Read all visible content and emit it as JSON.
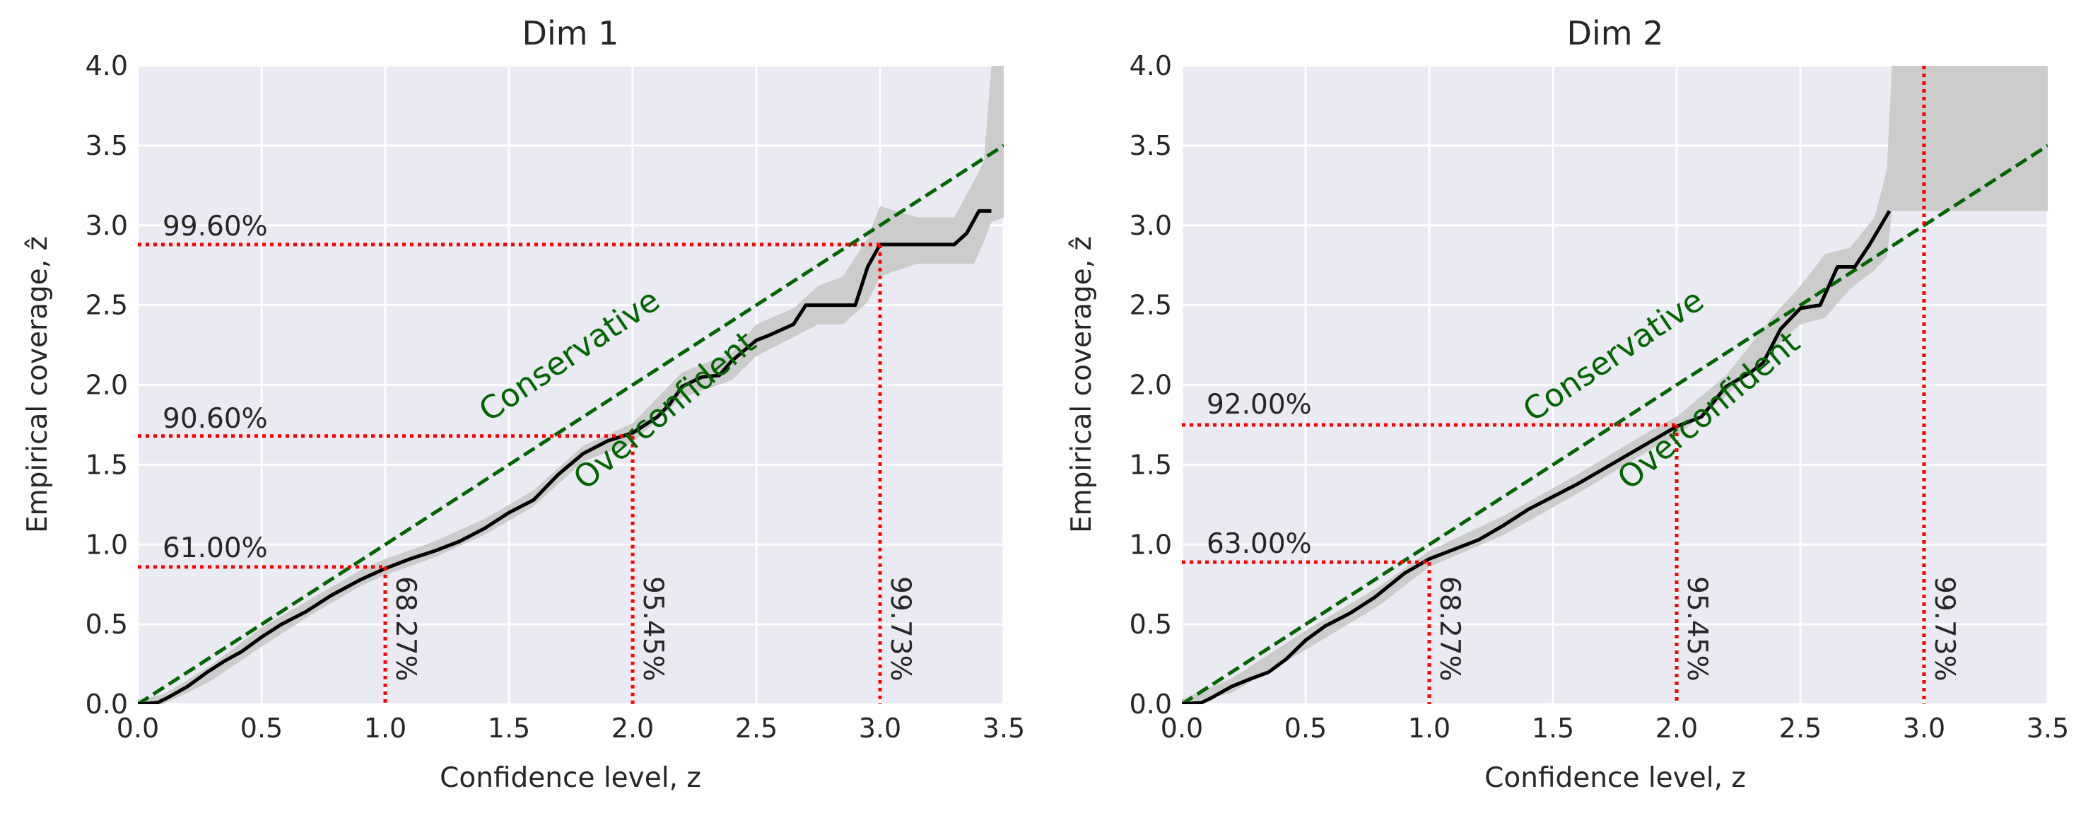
{
  "chart_data": [
    {
      "type": "line",
      "title": "Dim 1",
      "xlabel": "Confidence level, z",
      "ylabel": "Empirical coverage, ẑ",
      "xlim": [
        0.0,
        3.5
      ],
      "ylim": [
        0.0,
        4.0
      ],
      "xticks": [
        "0.0",
        "0.5",
        "1.0",
        "1.5",
        "2.0",
        "2.5",
        "3.0",
        "3.5"
      ],
      "yticks": [
        "0.0",
        "0.5",
        "1.0",
        "1.5",
        "2.0",
        "2.5",
        "3.0",
        "3.5",
        "4.0"
      ],
      "grid": true,
      "series": [
        {
          "name": "empirical coverage",
          "x": [
            0.0,
            0.08,
            0.12,
            0.2,
            0.28,
            0.35,
            0.42,
            0.5,
            0.58,
            0.68,
            0.78,
            0.9,
            1.0,
            1.1,
            1.2,
            1.3,
            1.4,
            1.5,
            1.6,
            1.7,
            1.8,
            1.9,
            2.0,
            2.1,
            2.15,
            2.2,
            2.28,
            2.35,
            2.4,
            2.5,
            2.55,
            2.65,
            2.7,
            2.8,
            2.9,
            2.95,
            3.0,
            3.1,
            3.2,
            3.3,
            3.35,
            3.4,
            3.45
          ],
          "y": [
            0.0,
            0.01,
            0.04,
            0.11,
            0.2,
            0.27,
            0.33,
            0.42,
            0.5,
            0.58,
            0.68,
            0.78,
            0.85,
            0.91,
            0.96,
            1.02,
            1.1,
            1.2,
            1.28,
            1.44,
            1.57,
            1.65,
            1.7,
            1.8,
            1.88,
            1.99,
            2.05,
            2.06,
            2.15,
            2.28,
            2.31,
            2.38,
            2.5,
            2.5,
            2.5,
            2.74,
            2.88,
            2.88,
            2.88,
            2.88,
            2.95,
            3.09,
            3.09
          ]
        },
        {
          "name": "uncertainty band",
          "x": [
            0.0,
            0.1,
            0.2,
            0.3,
            0.5,
            0.7,
            0.9,
            1.0,
            1.2,
            1.4,
            1.6,
            1.8,
            2.0,
            2.2,
            2.4,
            2.5,
            2.65,
            2.75,
            2.85,
            2.95,
            3.0,
            3.15,
            3.3,
            3.38,
            3.42,
            3.45,
            3.5
          ],
          "lower": [
            0.0,
            0.0,
            0.07,
            0.15,
            0.36,
            0.56,
            0.74,
            0.81,
            0.92,
            1.06,
            1.24,
            1.52,
            1.64,
            1.92,
            2.03,
            2.18,
            2.3,
            2.38,
            2.38,
            2.52,
            2.68,
            2.76,
            2.76,
            2.76,
            2.9,
            3.02,
            3.05
          ],
          "upper": [
            0.03,
            0.06,
            0.15,
            0.25,
            0.48,
            0.66,
            0.84,
            0.91,
            1.02,
            1.16,
            1.34,
            1.62,
            1.76,
            2.08,
            2.2,
            2.38,
            2.48,
            2.62,
            2.68,
            2.92,
            3.12,
            3.05,
            3.05,
            3.28,
            3.4,
            4.0,
            4.0
          ]
        },
        {
          "name": "ideal",
          "style": "dashed",
          "x": [
            0.0,
            3.5
          ],
          "y": [
            0.0,
            3.5
          ]
        }
      ],
      "reference_lines": [
        {
          "z": 1.0,
          "coverage": 0.86,
          "x_label": "68.27%",
          "y_label": "61.00%"
        },
        {
          "z": 2.0,
          "coverage": 1.68,
          "x_label": "95.45%",
          "y_label": "90.60%"
        },
        {
          "z": 3.0,
          "coverage": 2.88,
          "x_label": "99.73%",
          "y_label": "99.60%"
        }
      ],
      "annotations": [
        "Conservative",
        "Overconfident"
      ]
    },
    {
      "type": "line",
      "title": "Dim 2",
      "xlabel": "Confidence level, z",
      "ylabel": "Empirical coverage, ẑ",
      "xlim": [
        0.0,
        3.5
      ],
      "ylim": [
        0.0,
        4.0
      ],
      "xticks": [
        "0.0",
        "0.5",
        "1.0",
        "1.5",
        "2.0",
        "2.5",
        "3.0",
        "3.5"
      ],
      "yticks": [
        "0.0",
        "0.5",
        "1.0",
        "1.5",
        "2.0",
        "2.5",
        "3.0",
        "3.5",
        "4.0"
      ],
      "grid": true,
      "series": [
        {
          "name": "empirical coverage",
          "x": [
            0.0,
            0.08,
            0.12,
            0.2,
            0.28,
            0.35,
            0.42,
            0.5,
            0.58,
            0.68,
            0.78,
            0.9,
            1.0,
            1.1,
            1.2,
            1.3,
            1.4,
            1.5,
            1.6,
            1.7,
            1.8,
            1.9,
            2.0,
            2.1,
            2.2,
            2.3,
            2.35,
            2.42,
            2.5,
            2.58,
            2.65,
            2.72,
            2.78,
            2.86
          ],
          "y": [
            0.0,
            0.01,
            0.04,
            0.11,
            0.16,
            0.2,
            0.28,
            0.4,
            0.49,
            0.57,
            0.67,
            0.82,
            0.91,
            0.97,
            1.03,
            1.12,
            1.22,
            1.3,
            1.38,
            1.47,
            1.56,
            1.65,
            1.74,
            1.8,
            1.99,
            2.08,
            2.14,
            2.35,
            2.48,
            2.5,
            2.74,
            2.74,
            2.88,
            3.09
          ]
        },
        {
          "name": "uncertainty band",
          "x": [
            0.0,
            0.2,
            0.5,
            0.8,
            1.0,
            1.3,
            1.6,
            1.9,
            2.0,
            2.2,
            2.4,
            2.5,
            2.6,
            2.7,
            2.8,
            2.85,
            2.87,
            3.5
          ],
          "lower": [
            0.0,
            0.07,
            0.34,
            0.62,
            0.86,
            1.06,
            1.32,
            1.6,
            1.68,
            1.93,
            2.24,
            2.38,
            2.42,
            2.6,
            2.72,
            2.8,
            3.09,
            3.09
          ],
          "upper": [
            0.03,
            0.16,
            0.46,
            0.74,
            0.96,
            1.18,
            1.44,
            1.72,
            1.8,
            2.06,
            2.45,
            2.62,
            2.82,
            2.86,
            3.05,
            3.35,
            4.0,
            4.0
          ]
        },
        {
          "name": "ideal",
          "style": "dashed",
          "x": [
            0.0,
            3.5
          ],
          "y": [
            0.0,
            3.5
          ]
        }
      ],
      "reference_lines": [
        {
          "z": 1.0,
          "coverage": 0.89,
          "x_label": "68.27%",
          "y_label": "63.00%"
        },
        {
          "z": 2.0,
          "coverage": 1.75,
          "x_label": "95.45%",
          "y_label": "92.00%"
        },
        {
          "z": 3.0,
          "coverage": null,
          "x_label": "99.73%",
          "y_label": null
        }
      ],
      "annotations": [
        "Conservative",
        "Overconfident"
      ]
    }
  ],
  "colors": {
    "axes_bg": "#eaeaf2",
    "grid": "#ffffff",
    "line": "#000000",
    "band": "#cccccc",
    "ideal": "#006400",
    "reference": "#ff0000",
    "text": "#262626"
  }
}
